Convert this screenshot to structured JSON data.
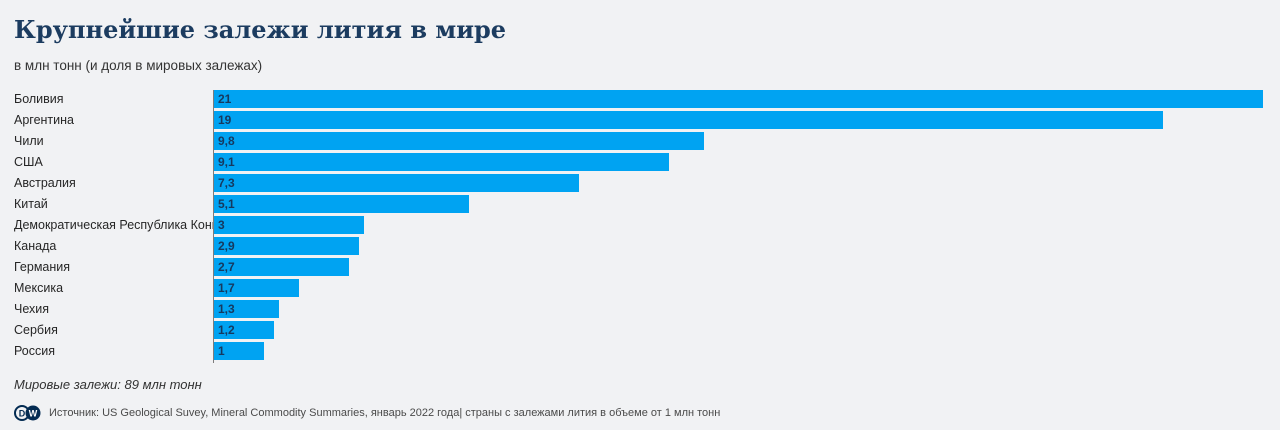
{
  "header": {
    "title": "Крупнейшие залежи лития в мире",
    "subtitle": "в млн тонн (и доля в мировых залежах)"
  },
  "chart_data": {
    "type": "bar",
    "orientation": "horizontal",
    "title": "Крупнейшие залежи лития в мире",
    "subtitle": "в млн тонн (и доля в мировых залежах)",
    "categories": [
      "Боливия",
      "Аргентина",
      "Чили",
      "США",
      "Австралия",
      "Китай",
      "Демократическая Республика Конго",
      "Канада",
      "Германия",
      "Мексика",
      "Чехия",
      "Сербия",
      "Россия"
    ],
    "values": [
      21,
      19,
      9.8,
      9.1,
      7.3,
      5.1,
      3,
      2.9,
      2.7,
      1.7,
      1.3,
      1.2,
      1
    ],
    "value_labels": [
      "21",
      "19",
      "9,8",
      "9,1",
      "7,3",
      "5,1",
      "3",
      "2,9",
      "2,7",
      "1,7",
      "1,3",
      "1,2",
      "1"
    ],
    "xlim": [
      0,
      21
    ],
    "unit": "млн тонн",
    "grid": false,
    "legend_position": "none"
  },
  "footnote": "Мировые залежи: 89 млн тонн",
  "source": {
    "logo": "dw-logo",
    "logo_letters": {
      "d": "D",
      "w": "W"
    },
    "text": "Источник: US Geological Suvey, Mineral Commodity Summaries, январь 2022 года| страны с залежами лития в объеме от 1 млн тонн"
  },
  "colors": {
    "background": "#f1f2f4",
    "title": "#1c3c60",
    "subtitle_text": "#333333",
    "bar": "#00a3f2",
    "bar_value_text": "#16395f",
    "category_label": "#262626",
    "axis_line": "#7c7c7c",
    "source_text": "#4a4a4a",
    "logo_navy": "#032b52"
  }
}
